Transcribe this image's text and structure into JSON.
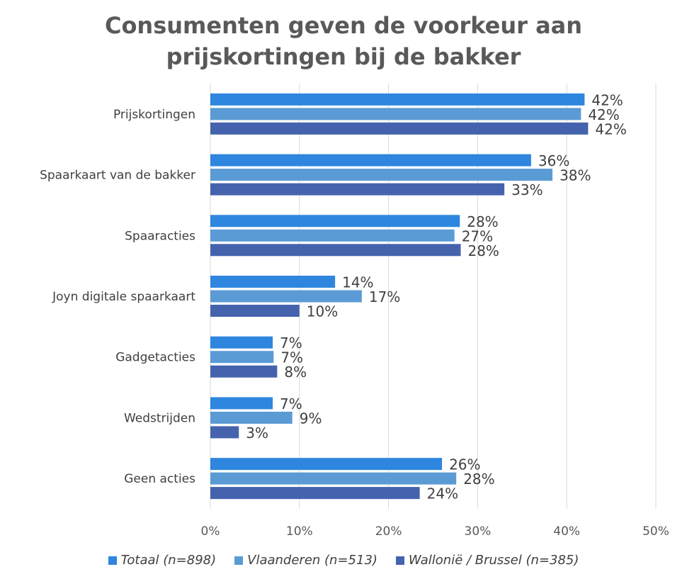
{
  "chart_data": {
    "type": "bar",
    "orientation": "horizontal",
    "title_lines": [
      "Consumenten geven de voorkeur aan",
      "prijskortingen bij de bakker"
    ],
    "categories": [
      "Prijskortingen",
      "Spaarkaart van de bakker",
      "Spaaracties",
      "Joyn digitale spaarkaart",
      "Gadgetacties",
      "Wedstrijden",
      "Geen acties"
    ],
    "series": [
      {
        "name": "Totaal (n=898)",
        "color": "#2E86DE",
        "values": [
          42,
          36,
          28,
          14,
          7,
          7,
          26
        ],
        "labels": [
          "42%",
          "36%",
          "28%",
          "14%",
          "7%",
          "7%",
          "26%"
        ]
      },
      {
        "name": "Vlaanderen (n=513)",
        "color": "#5B9BD5",
        "values": [
          41.6,
          38.4,
          27.4,
          17,
          7.1,
          9.2,
          27.6
        ],
        "labels": [
          "42%",
          "38%",
          "27%",
          "17%",
          "7%",
          "9%",
          "28%"
        ]
      },
      {
        "name": "Wallonië / Brussel (n=385)",
        "color": "#4563AD",
        "values": [
          42.4,
          33,
          28.1,
          10,
          7.5,
          3.2,
          23.5
        ],
        "labels": [
          "42%",
          "33%",
          "28%",
          "10%",
          "8%",
          "3%",
          "24%"
        ]
      }
    ],
    "xlim": [
      0,
      50
    ],
    "xticks": [
      "0%",
      "10%",
      "20%",
      "30%",
      "40%",
      "50%"
    ],
    "grid": true,
    "legend_position": "bottom"
  }
}
